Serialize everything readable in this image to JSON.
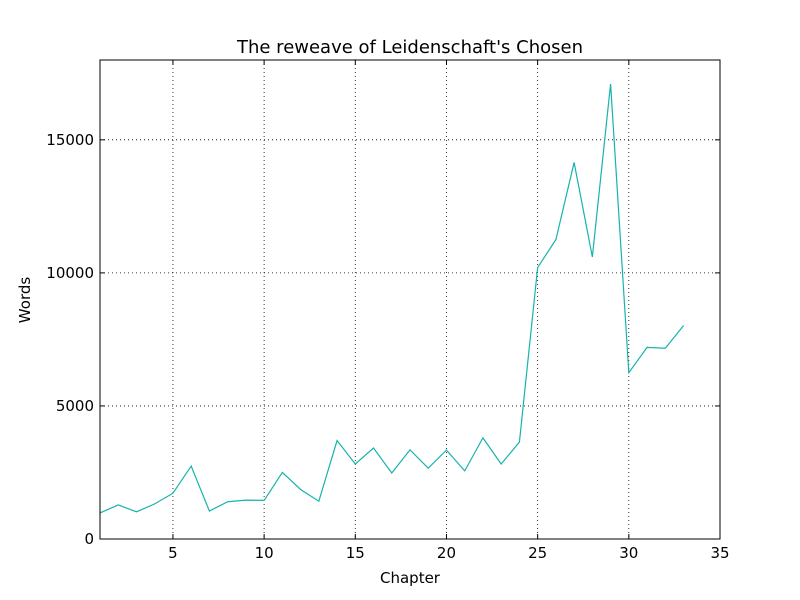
{
  "chart_data": {
    "type": "line",
    "title": "The reweave of Leidenschaft's Chosen",
    "xlabel": "Chapter",
    "ylabel": "Words",
    "xlim": [
      1,
      35
    ],
    "ylim": [
      0,
      18000
    ],
    "xticks": [
      5,
      10,
      15,
      20,
      25,
      30,
      35
    ],
    "yticks": [
      0,
      5000,
      10000,
      15000
    ],
    "grid": true,
    "color": "#17b3ad",
    "x": [
      1,
      2,
      3,
      4,
      5,
      6,
      7,
      8,
      9,
      10,
      11,
      12,
      13,
      14,
      15,
      16,
      17,
      18,
      19,
      20,
      21,
      22,
      23,
      24,
      25,
      26,
      27,
      28,
      29,
      30,
      31,
      32,
      33
    ],
    "values": [
      980,
      1280,
      1020,
      1320,
      1720,
      2740,
      1050,
      1400,
      1460,
      1450,
      2500,
      1860,
      1420,
      3700,
      2820,
      3420,
      2480,
      3350,
      2660,
      3340,
      2560,
      3800,
      2820,
      3640,
      10200,
      11250,
      14150,
      10600,
      17100,
      6250,
      7200,
      7170,
      8020
    ]
  }
}
